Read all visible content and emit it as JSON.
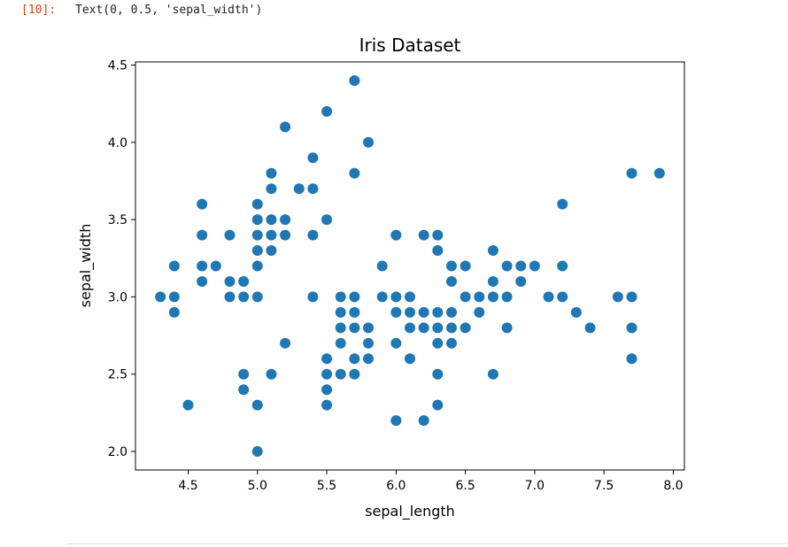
{
  "cell": {
    "prompt": "[10]:",
    "output_text": "Text(0, 0.5, 'sepal_width')"
  },
  "colors": {
    "marker": "#1f77b4",
    "prompt": "#D84315"
  },
  "chart_data": {
    "type": "scatter",
    "title": "Iris Dataset",
    "xlabel": "sepal_length",
    "ylabel": "sepal_width",
    "xlim": [
      4.12,
      8.08
    ],
    "ylim": [
      1.88,
      4.52
    ],
    "grid": false,
    "legend": "none",
    "xticks": [
      "4.5",
      "5.0",
      "5.5",
      "6.0",
      "6.5",
      "7.0",
      "7.5",
      "8.0"
    ],
    "yticks": [
      "2.0",
      "2.5",
      "3.0",
      "3.5",
      "4.0",
      "4.5"
    ],
    "points": [
      [
        4.3,
        3.0
      ],
      [
        4.4,
        3.2
      ],
      [
        4.4,
        3.0
      ],
      [
        4.4,
        2.9
      ],
      [
        4.5,
        2.3
      ],
      [
        4.6,
        3.6
      ],
      [
        4.6,
        3.4
      ],
      [
        4.6,
        3.2
      ],
      [
        4.6,
        3.1
      ],
      [
        4.7,
        3.2
      ],
      [
        4.8,
        3.4
      ],
      [
        4.8,
        3.1
      ],
      [
        4.8,
        3.0
      ],
      [
        4.9,
        3.1
      ],
      [
        4.9,
        3.0
      ],
      [
        4.9,
        2.5
      ],
      [
        4.9,
        2.4
      ],
      [
        5.0,
        3.6
      ],
      [
        5.0,
        3.5
      ],
      [
        5.0,
        3.4
      ],
      [
        5.0,
        3.3
      ],
      [
        5.0,
        3.2
      ],
      [
        5.0,
        3.0
      ],
      [
        5.0,
        2.3
      ],
      [
        5.0,
        2.0
      ],
      [
        5.1,
        3.8
      ],
      [
        5.1,
        3.7
      ],
      [
        5.1,
        3.5
      ],
      [
        5.1,
        3.4
      ],
      [
        5.1,
        3.3
      ],
      [
        5.1,
        2.5
      ],
      [
        5.2,
        4.1
      ],
      [
        5.2,
        3.5
      ],
      [
        5.2,
        3.4
      ],
      [
        5.2,
        2.7
      ],
      [
        5.3,
        3.7
      ],
      [
        5.4,
        3.9
      ],
      [
        5.4,
        3.7
      ],
      [
        5.4,
        3.4
      ],
      [
        5.4,
        3.0
      ],
      [
        5.5,
        4.2
      ],
      [
        5.5,
        3.5
      ],
      [
        5.5,
        2.6
      ],
      [
        5.5,
        2.5
      ],
      [
        5.5,
        2.4
      ],
      [
        5.5,
        2.3
      ],
      [
        5.6,
        3.0
      ],
      [
        5.6,
        2.9
      ],
      [
        5.6,
        2.8
      ],
      [
        5.6,
        2.7
      ],
      [
        5.6,
        2.5
      ],
      [
        5.7,
        4.4
      ],
      [
        5.7,
        3.8
      ],
      [
        5.7,
        3.0
      ],
      [
        5.7,
        2.9
      ],
      [
        5.7,
        2.8
      ],
      [
        5.7,
        2.6
      ],
      [
        5.7,
        2.5
      ],
      [
        5.8,
        4.0
      ],
      [
        5.8,
        2.8
      ],
      [
        5.8,
        2.7
      ],
      [
        5.8,
        2.6
      ],
      [
        5.9,
        3.2
      ],
      [
        5.9,
        3.0
      ],
      [
        6.0,
        3.4
      ],
      [
        6.0,
        3.0
      ],
      [
        6.0,
        2.9
      ],
      [
        6.0,
        2.7
      ],
      [
        6.0,
        2.2
      ],
      [
        6.1,
        3.0
      ],
      [
        6.1,
        2.9
      ],
      [
        6.1,
        2.8
      ],
      [
        6.1,
        2.6
      ],
      [
        6.2,
        3.4
      ],
      [
        6.2,
        2.9
      ],
      [
        6.2,
        2.8
      ],
      [
        6.2,
        2.2
      ],
      [
        6.3,
        3.4
      ],
      [
        6.3,
        3.3
      ],
      [
        6.3,
        2.9
      ],
      [
        6.3,
        2.8
      ],
      [
        6.3,
        2.7
      ],
      [
        6.3,
        2.5
      ],
      [
        6.3,
        2.3
      ],
      [
        6.4,
        3.2
      ],
      [
        6.4,
        3.1
      ],
      [
        6.4,
        2.9
      ],
      [
        6.4,
        2.8
      ],
      [
        6.4,
        2.7
      ],
      [
        6.5,
        3.2
      ],
      [
        6.5,
        3.0
      ],
      [
        6.5,
        2.8
      ],
      [
        6.6,
        3.0
      ],
      [
        6.6,
        2.9
      ],
      [
        6.7,
        3.3
      ],
      [
        6.7,
        3.1
      ],
      [
        6.7,
        3.0
      ],
      [
        6.7,
        2.5
      ],
      [
        6.8,
        3.2
      ],
      [
        6.8,
        3.0
      ],
      [
        6.8,
        2.8
      ],
      [
        6.9,
        3.2
      ],
      [
        6.9,
        3.1
      ],
      [
        7.0,
        3.2
      ],
      [
        7.1,
        3.0
      ],
      [
        7.2,
        3.6
      ],
      [
        7.2,
        3.2
      ],
      [
        7.2,
        3.0
      ],
      [
        7.3,
        2.9
      ],
      [
        7.4,
        2.8
      ],
      [
        7.6,
        3.0
      ],
      [
        7.7,
        3.8
      ],
      [
        7.7,
        3.0
      ],
      [
        7.7,
        2.8
      ],
      [
        7.7,
        2.6
      ],
      [
        7.9,
        3.8
      ]
    ]
  }
}
